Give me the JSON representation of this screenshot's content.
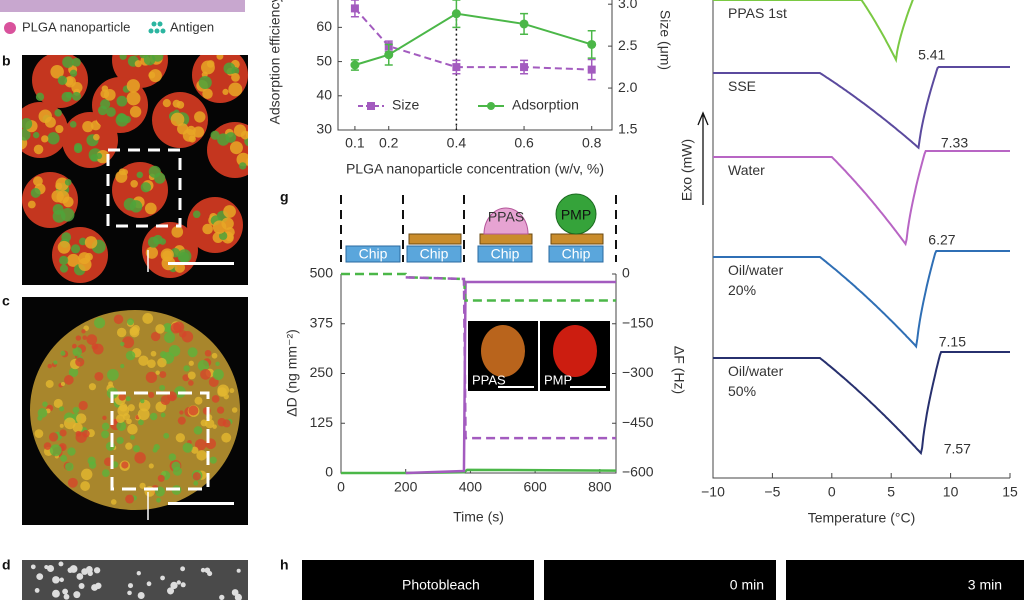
{
  "legend_strip": {
    "items": [
      "PLGA nanoparticle",
      "Antigen"
    ]
  },
  "panel_labels": [
    "b",
    "c",
    "d",
    "g",
    "h"
  ],
  "chart_data": [
    {
      "type": "errorline",
      "xlabel": "PLGA nanoparticle concentration (w/v, %)",
      "ylabel": "Adsorption efficiency",
      "y2label": "Size (μm)",
      "xlim": [
        0.05,
        0.86
      ],
      "xticks": [
        0.1,
        0.2,
        0.4,
        0.6,
        0.8
      ],
      "ylim": [
        30,
        68
      ],
      "yticks": [
        30,
        40,
        50,
        60
      ],
      "y2lim": [
        1.5,
        3.05
      ],
      "y2ticks": [
        1.5,
        {
          "value": 2,
          "label": "2.0"
        },
        2.5,
        {
          "value": 3,
          "label": "3.0"
        }
      ],
      "marker_x": 0.4,
      "x": [
        0.1,
        0.2,
        0.4,
        0.6,
        0.8
      ],
      "series": [
        {
          "name": "Size",
          "color": "#a35bbf",
          "dash": true,
          "axis": "y2",
          "values": [
            2.95,
            2.5,
            2.25,
            2.25,
            2.22
          ],
          "errors": [
            0.1,
            0.06,
            0.08,
            0.08,
            0.12
          ]
        },
        {
          "name": "Adsorption",
          "color": "#4bb748",
          "dash": false,
          "axis": "y",
          "values": [
            49,
            52,
            64,
            61,
            55
          ],
          "errors": [
            1.5,
            3,
            4,
            3,
            4
          ]
        }
      ]
    },
    {
      "type": "timeline",
      "xlabel": "Time (s)",
      "ylabel": "ΔD (ng mm⁻²)",
      "y2label": "ΔF (Hz)",
      "xlim": [
        0,
        850
      ],
      "xticks": [
        0,
        200,
        400,
        600,
        800
      ],
      "ylim": [
        0,
        500
      ],
      "yticks": [
        0,
        125,
        250,
        375,
        500
      ],
      "y2lim": [
        -600,
        0
      ],
      "y2ticks": [
        {
          "value": -600,
          "label": "−600"
        },
        {
          "value": -450,
          "label": "−450"
        },
        {
          "value": -300,
          "label": "−300"
        },
        {
          "value": -150,
          "label": "−150"
        },
        0
      ],
      "stage_labels": [
        "Chip",
        "Chip",
        "Chip",
        "Chip",
        "PPAS",
        "PMP"
      ],
      "inset_labels": [
        "PPAS",
        "PMP"
      ],
      "series": [
        {
          "color": "#4bb748",
          "dash": false,
          "axis": "y",
          "x": [
            0,
            200,
            380,
            390,
            850
          ],
          "values": [
            0,
            0,
            2,
            8,
            6
          ]
        },
        {
          "color": "#a35bbf",
          "dash": false,
          "axis": "y",
          "x": [
            200,
            380,
            385,
            850
          ],
          "values": [
            0,
            5,
            480,
            480
          ]
        },
        {
          "color": "#4bb748",
          "dash": true,
          "axis": "y2",
          "x": [
            0,
            200,
            205,
            380,
            385,
            850
          ],
          "values": [
            0,
            0,
            -10,
            -15,
            -80,
            -80
          ]
        },
        {
          "color": "#a35bbf",
          "dash": true,
          "axis": "y2",
          "x": [
            200,
            380,
            385,
            850
          ],
          "values": [
            -10,
            -15,
            -495,
            -495
          ]
        }
      ]
    },
    {
      "type": "dsc",
      "xlabel": "Temperature (°C)",
      "ylabel": "Exo (mW)",
      "xlim": [
        -10,
        15
      ],
      "xticks": [
        {
          "value": -10,
          "label": "−10"
        },
        {
          "value": -5,
          "label": "−5"
        },
        0,
        5,
        10,
        15
      ],
      "series": [
        {
          "name": "PPAS  1st",
          "color": "#7ac943",
          "peak": 5.41
        },
        {
          "name": "SSE",
          "color": "#5b4a9e",
          "peak": 7.33
        },
        {
          "name": "Water",
          "color": "#b865c4",
          "peak": 6.27
        },
        {
          "name": "Oil/water\n20%",
          "color": "#2f6fb5",
          "peak": 7.15
        },
        {
          "name": "Oil/water\n50%",
          "color": "#27306e",
          "peak": 7.57
        }
      ]
    }
  ],
  "panel_h": {
    "labels": [
      "Photobleach",
      "0 min",
      "3 min"
    ]
  }
}
